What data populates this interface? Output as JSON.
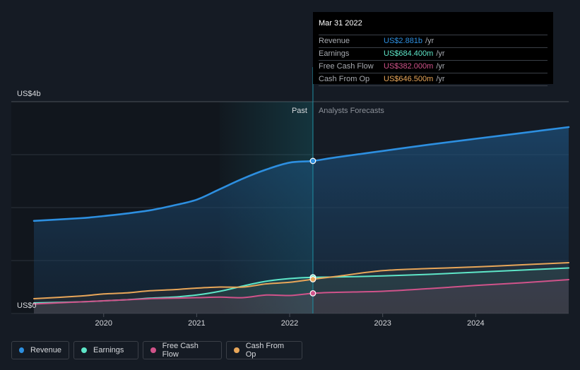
{
  "chart_data": {
    "type": "area",
    "y_axis": {
      "top_label": "US$4b",
      "bottom_label": "US$0",
      "ylim": [
        0,
        4.0
      ]
    },
    "x_tick_labels": [
      "2020",
      "2021",
      "2022",
      "2023",
      "2024"
    ],
    "x_ticks": [
      2020,
      2021,
      2022,
      2023,
      2024
    ],
    "xlim": [
      2019.25,
      2025.0
    ],
    "divider_x": 2022.25,
    "highlight_range": [
      2021.25,
      2022.25
    ],
    "past_label": "Past",
    "forecast_label": "Analysts Forecasts",
    "series": [
      {
        "name": "Revenue",
        "color": "#2d8fe0",
        "x": [
          2019.25,
          2019.75,
          2020.0,
          2020.25,
          2020.5,
          2020.75,
          2021.0,
          2021.25,
          2021.5,
          2021.75,
          2022.0,
          2022.25,
          2022.5,
          2023.0,
          2023.5,
          2024.0,
          2024.5,
          2025.0
        ],
        "y": [
          1.75,
          1.8,
          1.84,
          1.89,
          1.95,
          2.04,
          2.15,
          2.35,
          2.55,
          2.72,
          2.85,
          2.881,
          2.95,
          3.07,
          3.19,
          3.3,
          3.41,
          3.52
        ]
      },
      {
        "name": "Earnings",
        "color": "#5ee6c8",
        "x": [
          2019.25,
          2019.75,
          2020.0,
          2020.25,
          2020.5,
          2020.75,
          2021.0,
          2021.25,
          2021.5,
          2021.75,
          2022.0,
          2022.25,
          2022.5,
          2023.0,
          2023.5,
          2024.0,
          2024.5,
          2025.0
        ],
        "y": [
          0.2,
          0.22,
          0.24,
          0.26,
          0.29,
          0.31,
          0.35,
          0.42,
          0.52,
          0.61,
          0.66,
          0.6844,
          0.69,
          0.71,
          0.74,
          0.78,
          0.82,
          0.86
        ]
      },
      {
        "name": "Free Cash Flow",
        "color": "#d0538a",
        "x": [
          2019.25,
          2019.75,
          2020.0,
          2020.25,
          2020.5,
          2020.75,
          2021.0,
          2021.25,
          2021.5,
          2021.75,
          2022.0,
          2022.25,
          2022.5,
          2023.0,
          2023.5,
          2024.0,
          2024.5,
          2025.0
        ],
        "y": [
          0.18,
          0.22,
          0.24,
          0.26,
          0.28,
          0.29,
          0.3,
          0.31,
          0.3,
          0.35,
          0.34,
          0.382,
          0.4,
          0.42,
          0.47,
          0.53,
          0.58,
          0.64
        ]
      },
      {
        "name": "Cash From Op",
        "color": "#e8a659",
        "x": [
          2019.25,
          2019.75,
          2020.0,
          2020.25,
          2020.5,
          2020.75,
          2021.0,
          2021.25,
          2021.5,
          2021.75,
          2022.0,
          2022.25,
          2022.5,
          2023.0,
          2023.5,
          2024.0,
          2024.5,
          2025.0
        ],
        "y": [
          0.28,
          0.33,
          0.37,
          0.39,
          0.43,
          0.45,
          0.48,
          0.5,
          0.5,
          0.56,
          0.59,
          0.6465,
          0.7,
          0.81,
          0.85,
          0.88,
          0.92,
          0.96
        ]
      }
    ]
  },
  "tooltip": {
    "date": "Mar 31 2022",
    "unit": "/yr",
    "rows": [
      {
        "label": "Revenue",
        "value": "US$2.881b",
        "color": "#2d8fe0"
      },
      {
        "label": "Earnings",
        "value": "US$684.400m",
        "color": "#5ee6c8"
      },
      {
        "label": "Free Cash Flow",
        "value": "US$382.000m",
        "color": "#d0538a"
      },
      {
        "label": "Cash From Op",
        "value": "US$646.500m",
        "color": "#e8a659"
      }
    ]
  },
  "legend": [
    {
      "label": "Revenue",
      "color": "#2d8fe0"
    },
    {
      "label": "Earnings",
      "color": "#5ee6c8"
    },
    {
      "label": "Free Cash Flow",
      "color": "#d0538a"
    },
    {
      "label": "Cash From Op",
      "color": "#e8a659"
    }
  ]
}
